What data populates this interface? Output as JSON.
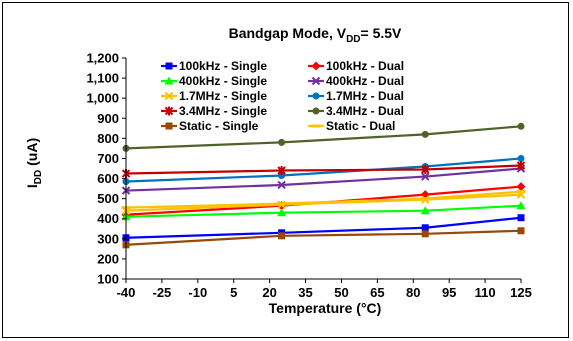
{
  "chart_data": {
    "type": "line",
    "title_main": "Bandgap Mode, V",
    "title_sub": "DD",
    "title_rest": "= 5.5V",
    "xlabel": "Temperature (°C)",
    "ylabel_main": "I",
    "ylabel_sub": "DD",
    "ylabel_rest": " (uA)",
    "xlim": [
      -40,
      125
    ],
    "ylim": [
      100,
      1200
    ],
    "xticks": [
      -40,
      -25,
      -10,
      5,
      20,
      35,
      50,
      65,
      80,
      95,
      110,
      125
    ],
    "yticks": [
      100,
      200,
      300,
      400,
      500,
      600,
      700,
      800,
      900,
      1000,
      1100,
      1200
    ],
    "ytick_labels": [
      "100",
      "200",
      "300",
      "400",
      "500",
      "600",
      "700",
      "800",
      "900",
      "1,000",
      "1,100",
      "1,200"
    ],
    "grid": false,
    "legend_position": "top",
    "x": [
      -40,
      25,
      85,
      125
    ],
    "series": [
      {
        "name": "100kHz - Single",
        "color": "#0000ff",
        "marker": "square",
        "values": [
          305,
          330,
          355,
          405
        ]
      },
      {
        "name": "100kHz - Dual",
        "color": "#ff0000",
        "marker": "diamond",
        "values": [
          420,
          465,
          520,
          560
        ]
      },
      {
        "name": "400kHz - Single",
        "color": "#00ff00",
        "marker": "triangle",
        "values": [
          410,
          430,
          440,
          465
        ]
      },
      {
        "name": "400kHz - Dual",
        "color": "#7030a0",
        "marker": "x",
        "values": [
          540,
          568,
          610,
          650
        ]
      },
      {
        "name": "1.7MHz - Single",
        "color": "#ffc000",
        "marker": "x",
        "values": [
          440,
          470,
          495,
          520
        ]
      },
      {
        "name": "1.7MHz - Dual",
        "color": "#0070c0",
        "marker": "circle",
        "values": [
          585,
          615,
          660,
          700
        ]
      },
      {
        "name": "3.4MHz - Single",
        "color": "#c00000",
        "marker": "star",
        "values": [
          625,
          640,
          645,
          665
        ]
      },
      {
        "name": "3.4MHz - Dual",
        "color": "#4f6228",
        "marker": "circle",
        "values": [
          750,
          780,
          820,
          860
        ]
      },
      {
        "name": "Static - Single",
        "color": "#984807",
        "marker": "square",
        "values": [
          270,
          315,
          325,
          340
        ]
      },
      {
        "name": "Static - Dual",
        "color": "#ffc000",
        "marker": "dash",
        "values": [
          455,
          475,
          500,
          535
        ]
      }
    ]
  }
}
